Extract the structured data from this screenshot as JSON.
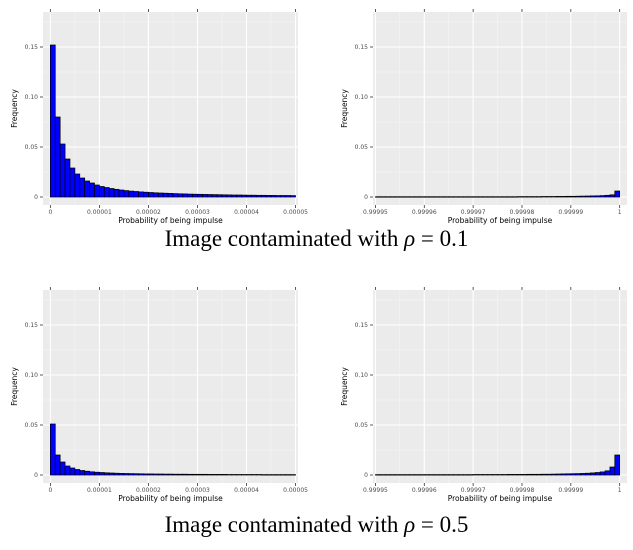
{
  "captions": [
    {
      "prefix": "Image contaminated with ",
      "symbol": "ρ",
      "suffix": " = 0.1"
    },
    {
      "prefix": "Image contaminated with ",
      "symbol": "ρ",
      "suffix": " = 0.5"
    }
  ],
  "chart_data": [
    {
      "type": "bar",
      "xlabel": "Probability of being impulse",
      "ylabel": "Frequency",
      "xlim": [
        -1.5e-06,
        5.05e-05
      ],
      "ylim": [
        -0.008,
        0.185
      ],
      "x_ticks": [
        0,
        1e-05,
        2e-05,
        3e-05,
        4e-05,
        5e-05
      ],
      "x_tick_labels": [
        "0",
        "0.00001",
        "0.00002",
        "0.00003",
        "0.00004",
        "0.00005"
      ],
      "y_ticks": [
        0,
        0.05,
        0.1,
        0.15
      ],
      "y_tick_labels": [
        "0",
        "0.05",
        "0.10",
        "0.15"
      ],
      "bin_start": 0,
      "bin_width": 1e-06,
      "values": [
        0.152,
        0.08,
        0.053,
        0.038,
        0.029,
        0.023,
        0.019,
        0.016,
        0.014,
        0.012,
        0.0105,
        0.0095,
        0.0085,
        0.0077,
        0.007,
        0.0064,
        0.0059,
        0.0055,
        0.0051,
        0.0048,
        0.0045,
        0.0042,
        0.004,
        0.0038,
        0.0036,
        0.0034,
        0.0032,
        0.0031,
        0.0029,
        0.0028,
        0.0027,
        0.0026,
        0.0025,
        0.0024,
        0.0023,
        0.0022,
        0.0021,
        0.002,
        0.002,
        0.0019,
        0.0018,
        0.0018,
        0.0017,
        0.0017,
        0.0016,
        0.0016,
        0.0015,
        0.0015,
        0.0015,
        0.0014
      ],
      "grid": true,
      "fill": "#0000ff"
    },
    {
      "type": "bar",
      "xlabel": "Probability of being impulse",
      "ylabel": "Frequency",
      "xlim": [
        0.9999495,
        1.0000015
      ],
      "ylim": [
        -0.008,
        0.185
      ],
      "x_ticks": [
        0.99995,
        0.99996,
        0.99997,
        0.99998,
        0.99999,
        1
      ],
      "x_tick_labels": [
        "0.99995",
        "0.99996",
        "0.99997",
        "0.99998",
        "0.99999",
        "1"
      ],
      "y_ticks": [
        0,
        0.05,
        0.1,
        0.15
      ],
      "y_tick_labels": [
        "0",
        "0.05",
        "0.10",
        "0.15"
      ],
      "bin_start": 0.99995,
      "bin_width": 1e-06,
      "values": [
        0.0003,
        0.0003,
        0.0003,
        0.0003,
        0.0003,
        0.0003,
        0.0003,
        0.0003,
        0.0003,
        0.0003,
        0.0003,
        0.0003,
        0.0003,
        0.0003,
        0.0003,
        0.0003,
        0.0003,
        0.0003,
        0.0003,
        0.0003,
        0.0003,
        0.0003,
        0.0003,
        0.0003,
        0.0003,
        0.0003,
        0.0003,
        0.0003,
        0.0003,
        0.0004,
        0.0004,
        0.0004,
        0.0004,
        0.0004,
        0.0005,
        0.0005,
        0.0005,
        0.0006,
        0.0006,
        0.0007,
        0.0007,
        0.0008,
        0.0009,
        0.001,
        0.0011,
        0.0012,
        0.0014,
        0.0017,
        0.0022,
        0.006
      ],
      "grid": true,
      "fill": "#0000ff"
    },
    {
      "type": "bar",
      "xlabel": "Probability of being impulse",
      "ylabel": "Frequency",
      "xlim": [
        -1.5e-06,
        5.05e-05
      ],
      "ylim": [
        -0.008,
        0.185
      ],
      "x_ticks": [
        0,
        1e-05,
        2e-05,
        3e-05,
        4e-05,
        5e-05
      ],
      "x_tick_labels": [
        "0",
        "0.00001",
        "0.00002",
        "0.00003",
        "0.00004",
        "0.00005"
      ],
      "y_ticks": [
        0,
        0.05,
        0.1,
        0.15
      ],
      "y_tick_labels": [
        "0",
        "0.05",
        "0.10",
        "0.15"
      ],
      "bin_start": 0,
      "bin_width": 1e-06,
      "values": [
        0.051,
        0.02,
        0.013,
        0.009,
        0.007,
        0.0055,
        0.0045,
        0.0038,
        0.0032,
        0.0028,
        0.0025,
        0.0022,
        0.002,
        0.0018,
        0.0016,
        0.0015,
        0.0014,
        0.0013,
        0.0012,
        0.0011,
        0.0011,
        0.001,
        0.001,
        0.0009,
        0.0009,
        0.0008,
        0.0008,
        0.0008,
        0.0007,
        0.0007,
        0.0007,
        0.0007,
        0.0006,
        0.0006,
        0.0006,
        0.0006,
        0.0005,
        0.0005,
        0.0005,
        0.0005,
        0.0005,
        0.0005,
        0.0005,
        0.0004,
        0.0004,
        0.0004,
        0.0004,
        0.0004,
        0.0004,
        0.0004
      ],
      "grid": true,
      "fill": "#0000ff"
    },
    {
      "type": "bar",
      "xlabel": "Probability of being impulse",
      "ylabel": "Frequency",
      "xlim": [
        0.9999495,
        1.0000015
      ],
      "ylim": [
        -0.008,
        0.185
      ],
      "x_ticks": [
        0.99995,
        0.99996,
        0.99997,
        0.99998,
        0.99999,
        1
      ],
      "x_tick_labels": [
        "0.99995",
        "0.99996",
        "0.99997",
        "0.99998",
        "0.99999",
        "1"
      ],
      "y_ticks": [
        0,
        0.05,
        0.1,
        0.15
      ],
      "y_tick_labels": [
        "0",
        "0.05",
        "0.10",
        "0.15"
      ],
      "bin_start": 0.99995,
      "bin_width": 1e-06,
      "values": [
        0.0004,
        0.0004,
        0.0004,
        0.0004,
        0.0004,
        0.0004,
        0.0004,
        0.0004,
        0.0004,
        0.0004,
        0.0004,
        0.0004,
        0.0004,
        0.0004,
        0.0004,
        0.0004,
        0.0004,
        0.0004,
        0.0004,
        0.0004,
        0.0005,
        0.0005,
        0.0005,
        0.0005,
        0.0005,
        0.0005,
        0.0005,
        0.0006,
        0.0006,
        0.0006,
        0.0006,
        0.0007,
        0.0007,
        0.0007,
        0.0008,
        0.0008,
        0.0009,
        0.001,
        0.0011,
        0.0012,
        0.0013,
        0.0014,
        0.0016,
        0.0018,
        0.0021,
        0.0025,
        0.0031,
        0.0042,
        0.008,
        0.02
      ],
      "grid": true,
      "fill": "#0000ff"
    }
  ]
}
